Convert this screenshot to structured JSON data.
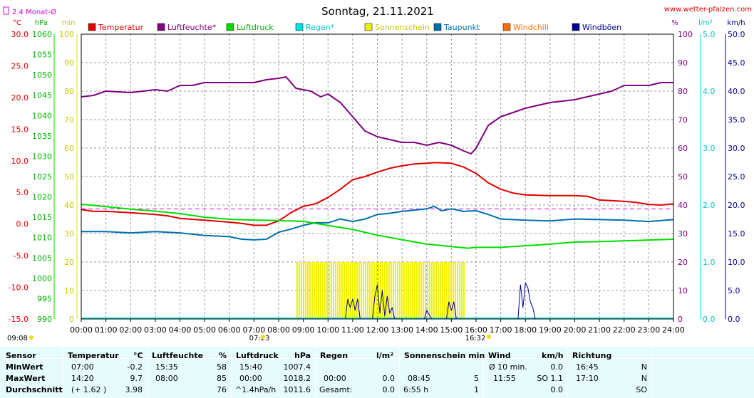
{
  "page": {
    "title": "Sonntag, 21.11.2021",
    "site": "www.wetter-pfalzen.com",
    "avg_label": "2.4 Monat-Ø",
    "sunrise": "07:23",
    "sunset": "16:32",
    "update_time": "09:08"
  },
  "colors": {
    "temperatur": "#e00000",
    "luftfeuchte": "#800080",
    "luftdruck": "#00dd00",
    "regen": "#00e0e0",
    "sonnenschein": "#f0f000",
    "taupunkt": "#0070b0",
    "windchill": "#ff7000",
    "windboeen": "#000090",
    "grid": "#9a9a9a",
    "stats_bg": "#e6fcfc"
  },
  "chart_data": {
    "type": "line",
    "title": "Sonntag, 21.11.2021",
    "legend": [
      "Temperatur",
      "Luftfeuchte*",
      "Luftdruck",
      "Regen*",
      "Sonnenschein",
      "Taupunkt",
      "Windchill",
      "Windböen"
    ],
    "legend_placement": "top",
    "grid": true,
    "x_unit": "hours",
    "x_ticks": [
      "00:00",
      "01:00",
      "02:00",
      "03:00",
      "04:00",
      "05:00",
      "06:00",
      "07:00",
      "08:00",
      "09:00",
      "10:00",
      "11:00",
      "12:00",
      "13:00",
      "14:00",
      "15:00",
      "16:00",
      "17:00",
      "18:00",
      "19:00",
      "20:00",
      "21:00",
      "22:00",
      "23:00",
      "24:00"
    ],
    "axes": {
      "temp": {
        "unit": "°C",
        "min": -15,
        "max": 30,
        "ticks": [
          "30.0",
          "25.0",
          "20.0",
          "15.0",
          "10.0",
          "5.0",
          "0.0",
          "-5.0",
          "-10.0",
          "-15.0"
        ]
      },
      "pressure": {
        "unit": "hPa",
        "min": 990,
        "max": 1060,
        "ticks": [
          "1060",
          "1055",
          "1050",
          "1045",
          "1040",
          "1035",
          "1030",
          "1025",
          "1020",
          "1015",
          "1010",
          "1005",
          "1000",
          "995",
          "990"
        ]
      },
      "minutes": {
        "unit": "min",
        "min": 0,
        "max": 100,
        "ticks": [
          "100",
          "90",
          "80",
          "70",
          "60",
          "50",
          "40",
          "30",
          "20",
          "10",
          "0"
        ]
      },
      "humidity": {
        "unit": "%",
        "min": 0,
        "max": 100,
        "ticks": [
          "100",
          "90",
          "80",
          "70",
          "60",
          "50",
          "40",
          "30",
          "20",
          "10",
          "0"
        ]
      },
      "rain": {
        "unit": "l/m²",
        "min": 0,
        "max": 5,
        "ticks": [
          "5.0",
          "4.0",
          "3.0",
          "2.0",
          "1.0",
          "0.0"
        ]
      },
      "wind": {
        "unit": "km/h",
        "min": 0,
        "max": 50,
        "ticks": [
          "50.0",
          "45.0",
          "40.0",
          "35.0",
          "30.0",
          "25.0",
          "20.0",
          "15.0",
          "10.0",
          "5.0",
          "0.0"
        ]
      }
    },
    "monthly_avg_temp": 2.4,
    "series": [
      {
        "name": "Luftfeuchte*",
        "axis": "humidity",
        "points": [
          [
            0,
            78
          ],
          [
            0.5,
            78.5
          ],
          [
            1,
            80
          ],
          [
            2,
            79.5
          ],
          [
            3,
            80.5
          ],
          [
            3.5,
            80
          ],
          [
            4,
            82
          ],
          [
            4.5,
            82
          ],
          [
            5,
            83
          ],
          [
            6,
            83
          ],
          [
            7,
            83
          ],
          [
            7.5,
            84
          ],
          [
            8,
            84.5
          ],
          [
            8.3,
            85
          ],
          [
            8.7,
            81
          ],
          [
            9.3,
            80
          ],
          [
            9.7,
            78
          ],
          [
            10,
            79
          ],
          [
            10.5,
            76
          ],
          [
            11,
            71
          ],
          [
            11.5,
            66
          ],
          [
            12,
            64
          ],
          [
            12.5,
            63
          ],
          [
            13,
            62
          ],
          [
            13.5,
            62
          ],
          [
            14,
            61
          ],
          [
            14.5,
            62
          ],
          [
            15,
            61
          ],
          [
            15.5,
            59
          ],
          [
            15.8,
            58
          ],
          [
            16,
            60
          ],
          [
            16.5,
            68
          ],
          [
            17,
            71
          ],
          [
            18,
            74
          ],
          [
            19,
            76
          ],
          [
            20,
            77
          ],
          [
            21,
            79
          ],
          [
            21.5,
            80
          ],
          [
            22,
            82
          ],
          [
            23,
            82
          ],
          [
            23.5,
            83
          ],
          [
            24,
            83
          ]
        ]
      },
      {
        "name": "Temperatur",
        "axis": "temp",
        "points": [
          [
            0,
            2.3
          ],
          [
            0.5,
            2.0
          ],
          [
            1,
            2.0
          ],
          [
            2,
            1.8
          ],
          [
            3,
            1.5
          ],
          [
            3.5,
            1.3
          ],
          [
            4,
            0.9
          ],
          [
            5,
            0.6
          ],
          [
            6,
            0.3
          ],
          [
            6.5,
            0.1
          ],
          [
            7,
            -0.2
          ],
          [
            7.5,
            -0.2
          ],
          [
            8,
            0.5
          ],
          [
            8.5,
            1.8
          ],
          [
            9,
            2.8
          ],
          [
            9.5,
            3.2
          ],
          [
            10,
            4.2
          ],
          [
            10.5,
            5.5
          ],
          [
            11,
            7.0
          ],
          [
            11.5,
            7.5
          ],
          [
            12,
            8.2
          ],
          [
            12.5,
            8.8
          ],
          [
            13,
            9.2
          ],
          [
            13.5,
            9.5
          ],
          [
            14,
            9.6
          ],
          [
            14.33,
            9.7
          ],
          [
            15,
            9.6
          ],
          [
            15.5,
            9.0
          ],
          [
            16,
            8.0
          ],
          [
            16.5,
            6.5
          ],
          [
            17,
            5.5
          ],
          [
            17.5,
            4.9
          ],
          [
            18,
            4.6
          ],
          [
            19,
            4.5
          ],
          [
            20,
            4.5
          ],
          [
            20.5,
            4.4
          ],
          [
            21,
            3.8
          ],
          [
            22,
            3.6
          ],
          [
            22.5,
            3.4
          ],
          [
            23,
            3.1
          ],
          [
            23.5,
            3.0
          ],
          [
            24,
            3.2
          ]
        ]
      },
      {
        "name": "Taupunkt",
        "axis": "temp",
        "points": [
          [
            0,
            -1.2
          ],
          [
            1,
            -1.2
          ],
          [
            2,
            -1.4
          ],
          [
            3,
            -1.2
          ],
          [
            4,
            -1.4
          ],
          [
            5,
            -1.8
          ],
          [
            6,
            -2.0
          ],
          [
            6.5,
            -2.4
          ],
          [
            7,
            -2.5
          ],
          [
            7.5,
            -2.4
          ],
          [
            8,
            -1.3
          ],
          [
            8.5,
            -0.8
          ],
          [
            9,
            -0.2
          ],
          [
            9.5,
            0.2
          ],
          [
            10,
            0.2
          ],
          [
            10.5,
            0.8
          ],
          [
            11,
            0.4
          ],
          [
            11.5,
            0.8
          ],
          [
            12,
            1.5
          ],
          [
            12.5,
            1.7
          ],
          [
            13,
            2.0
          ],
          [
            13.5,
            2.2
          ],
          [
            14,
            2.4
          ],
          [
            14.3,
            2.8
          ],
          [
            14.6,
            2.1
          ],
          [
            15,
            2.4
          ],
          [
            15.5,
            2.0
          ],
          [
            16,
            2.1
          ],
          [
            16.5,
            1.5
          ],
          [
            17,
            0.8
          ],
          [
            18,
            0.6
          ],
          [
            19,
            0.5
          ],
          [
            20,
            0.8
          ],
          [
            21,
            0.7
          ],
          [
            22,
            0.6
          ],
          [
            23,
            0.4
          ],
          [
            24,
            0.7
          ]
        ]
      },
      {
        "name": "Luftdruck",
        "axis": "pressure",
        "points": [
          [
            0,
            1018.2
          ],
          [
            1,
            1017.6
          ],
          [
            2,
            1017
          ],
          [
            3,
            1016.5
          ],
          [
            4,
            1015.9
          ],
          [
            5,
            1015
          ],
          [
            6,
            1014.5
          ],
          [
            7,
            1014.3
          ],
          [
            8,
            1014.2
          ],
          [
            9,
            1014
          ],
          [
            10,
            1013
          ],
          [
            11,
            1012
          ],
          [
            12,
            1010.6
          ],
          [
            13,
            1009.5
          ],
          [
            14,
            1008.4
          ],
          [
            15,
            1007.8
          ],
          [
            15.67,
            1007.4
          ],
          [
            16,
            1007.6
          ],
          [
            17,
            1007.6
          ],
          [
            18,
            1008
          ],
          [
            19,
            1008.4
          ],
          [
            20,
            1008.9
          ],
          [
            21,
            1009
          ],
          [
            22,
            1009.2
          ],
          [
            23,
            1009.4
          ],
          [
            24,
            1009.6
          ]
        ]
      },
      {
        "name": "Windböen",
        "axis": "wind",
        "points": [
          [
            0,
            0
          ],
          [
            10.7,
            0
          ],
          [
            10.8,
            3.5
          ],
          [
            10.9,
            2
          ],
          [
            11,
            3.5
          ],
          [
            11.1,
            1.5
          ],
          [
            11.2,
            3.5
          ],
          [
            11.3,
            0
          ],
          [
            11.8,
            0
          ],
          [
            11.9,
            4
          ],
          [
            12,
            6
          ],
          [
            12.1,
            1
          ],
          [
            12.2,
            5
          ],
          [
            12.3,
            0.5
          ],
          [
            12.4,
            4
          ],
          [
            12.5,
            1
          ],
          [
            12.6,
            2
          ],
          [
            12.7,
            0
          ],
          [
            13.9,
            0
          ],
          [
            14,
            1.5
          ],
          [
            14.2,
            0
          ],
          [
            14.8,
            0
          ],
          [
            14.9,
            3
          ],
          [
            15,
            1.5
          ],
          [
            15.1,
            3
          ],
          [
            15.2,
            0
          ],
          [
            17.7,
            0
          ],
          [
            17.8,
            6
          ],
          [
            17.9,
            2
          ],
          [
            18.0,
            6.3
          ],
          [
            18.1,
            5.5
          ],
          [
            18.2,
            3
          ],
          [
            18.3,
            2
          ],
          [
            18.4,
            0
          ],
          [
            24,
            0
          ]
        ]
      }
    ],
    "sunshine_bands": [
      [
        8.72,
        15.55
      ]
    ],
    "rain_total": 0.0
  },
  "stats": {
    "headers": {
      "sensor": "Sensor",
      "temp": "Temperatur",
      "temp_unit": "°C",
      "hum": "Luftfeuchte",
      "hum_unit": "%",
      "press": "Luftdruck",
      "press_unit": "hPa",
      "rain": "Regen",
      "rain_unit": "l/m²",
      "sun": "Sonnenschein min",
      "wind": "Wind",
      "wind_unit": "km/h",
      "dir": "Richtung"
    },
    "rows": [
      {
        "label": "MinWert",
        "temp_time": "07:00",
        "temp_val": "-0.2",
        "hum_time": "15:35",
        "hum_val": "58",
        "press_time": "15:40",
        "press_val": "1007.4",
        "rain_time": "",
        "rain_val": "",
        "sun_time": "",
        "sun_val": "",
        "wind_time": "Ø 10 min.",
        "wind_val": "0.0",
        "dir_time": "16:45",
        "dir_val": "N"
      },
      {
        "label": "MaxWert",
        "temp_time": "14:20",
        "temp_val": "9.7",
        "hum_time": "08:00",
        "hum_val": "85",
        "press_time": "00:00",
        "press_val": "1018.2",
        "rain_time": "00:00",
        "rain_val": "0.0",
        "sun_time": "08:45",
        "sun_val": "5",
        "wind_time": "11:55",
        "wind_val": "SO 1.1",
        "dir_time": "17:10",
        "dir_val": "N"
      },
      {
        "label": "Durchschnitt",
        "temp_time": "(+ 1.62 )",
        "temp_val": "3.98",
        "hum_time": "",
        "hum_val": "76",
        "press_time": "^1.4hPa/h",
        "press_val": "1011.6",
        "rain_time": "Gesamt:",
        "rain_val": "0.0",
        "sun_time": "6:55 h",
        "sun_val": "1",
        "wind_time": "",
        "wind_val": "0.0",
        "dir_time": "",
        "dir_val": "SO"
      }
    ]
  }
}
